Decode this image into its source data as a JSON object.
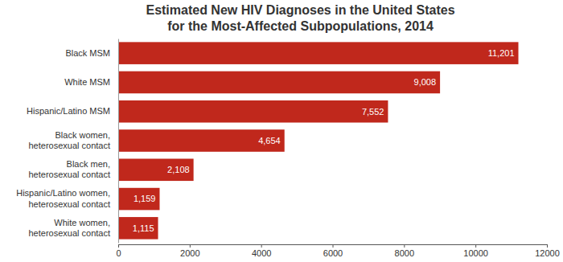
{
  "chart_data": {
    "type": "bar",
    "orientation": "horizontal",
    "title": [
      "Estimated New HIV Diagnoses in the United States",
      "for the Most-Affected Subpopulations, 2014"
    ],
    "categories": [
      "Black MSM",
      "White MSM",
      "Hispanic/Latino MSM",
      "Black women, heterosexual contact",
      "Black men, heterosexual contact",
      "Hispanic/Latino women, heterosexual contact",
      "White women, heterosexual contact"
    ],
    "values": [
      11201,
      9008,
      7552,
      4654,
      2108,
      1159,
      1115
    ],
    "value_labels": [
      "11,201",
      "9,008",
      "7,552",
      "4,654",
      "2,108",
      "1,159",
      "1,115"
    ],
    "data_labels": true,
    "color": "#c0281c",
    "xlim": [
      0,
      12000
    ],
    "xticks": [
      0,
      2000,
      4000,
      6000,
      8000,
      10000,
      12000
    ],
    "grid": false
  }
}
